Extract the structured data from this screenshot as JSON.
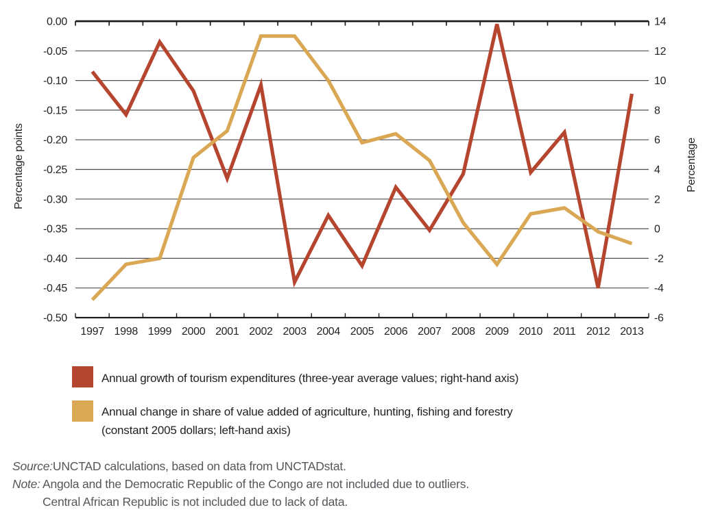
{
  "chart_data": {
    "type": "line",
    "categories": [
      "1997",
      "1998",
      "1999",
      "2000",
      "2001",
      "2002",
      "2003",
      "2004",
      "2005",
      "2006",
      "2007",
      "2008",
      "2009",
      "2010",
      "2011",
      "2012",
      "2013"
    ],
    "left_axis": {
      "label": "Percentage points",
      "min": -0.5,
      "max": 0.0,
      "tick_step": 0.05,
      "ticks": [
        "0.00",
        "-0.05",
        "-0.10",
        "-0.15",
        "-0.20",
        "-0.25",
        "-0.30",
        "-0.35",
        "-0.40",
        "-0.45",
        "-0.50"
      ]
    },
    "right_axis": {
      "label": "Percentage",
      "min": -6,
      "max": 14,
      "tick_step": 2,
      "ticks": [
        "14",
        "12",
        "10",
        "8",
        "6",
        "4",
        "2",
        "0",
        "-2",
        "-4",
        "-6"
      ]
    },
    "grid": true,
    "legend_position": "bottom",
    "series": [
      {
        "name": "Annual growth of tourism expenditures (three-year average values; right-hand axis)",
        "axis": "right",
        "color": "#B5452F",
        "values": [
          10.6,
          7.7,
          12.6,
          9.3,
          3.4,
          9.7,
          -3.6,
          0.9,
          -2.5,
          2.8,
          -0.1,
          3.7,
          13.8,
          3.8,
          6.5,
          -4.0,
          9.1
        ]
      },
      {
        "name": "Annual change in share of value added of agriculture, hunting, fishing and forestry (constant 2005 dollars; left-hand axis)",
        "axis": "left",
        "color": "#DAA854",
        "values": [
          -0.47,
          -0.41,
          -0.4,
          -0.23,
          -0.185,
          -0.025,
          -0.025,
          -0.1,
          -0.205,
          -0.19,
          -0.235,
          -0.34,
          -0.41,
          -0.325,
          -0.315,
          -0.355,
          -0.375
        ]
      }
    ]
  },
  "axis_titles": {
    "left": "Percentage points",
    "right": "Percentage"
  },
  "legend": {
    "items": [
      {
        "color": "#B5452F",
        "line1": "Annual growth of tourism expenditures (three-year average values; right-hand axis)",
        "line2": ""
      },
      {
        "color": "#DAA854",
        "line1": "Annual change in share of value added of agriculture, hunting, fishing and forestry",
        "line2": "(constant 2005 dollars; left-hand axis)"
      }
    ]
  },
  "footer": {
    "source_label": "Source:",
    "source_text": "UNCTAD calculations, based on data from UNCTADstat.",
    "note_label": "Note:",
    "note_line1": "Angola and the Democratic Republic of the Congo are not included due to outliers.",
    "note_line2": "Central African Republic is not included due to lack of data."
  }
}
